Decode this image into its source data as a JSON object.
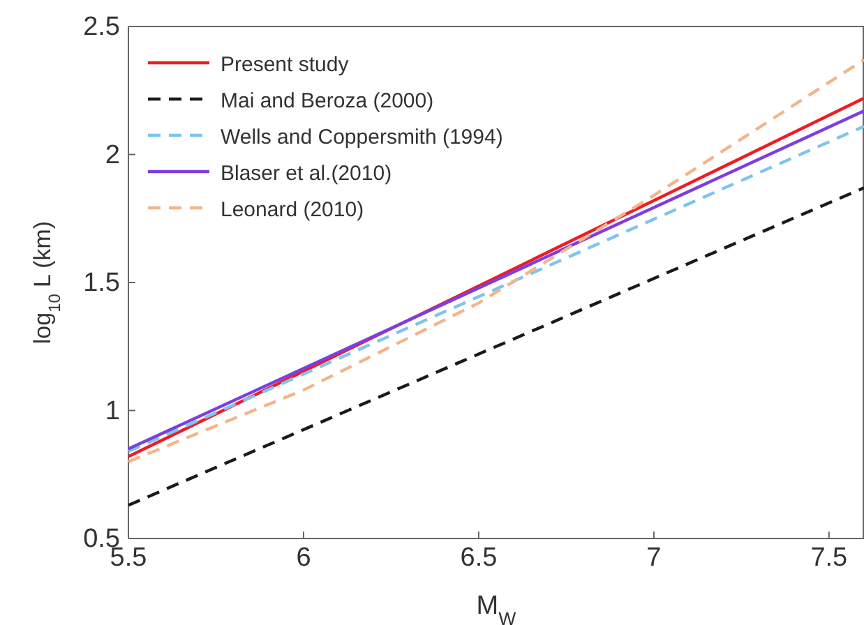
{
  "chart_data": {
    "type": "line",
    "xlabel": "M$_{W}$",
    "ylabel": "log$_{10}$ L (km)",
    "xlim": [
      5.5,
      7.6
    ],
    "xticks": [
      5.5,
      6,
      6.5,
      7,
      7.5
    ],
    "ylim": [
      0.5,
      2.5
    ],
    "yticks": [
      0.5,
      1,
      1.5,
      2,
      2.5
    ],
    "grid": false,
    "legend": "top left",
    "marker": "none",
    "series": [
      {
        "name": "Present study",
        "color": "#ee1c25",
        "line_style": "solid",
        "x": [
          5.5,
          7.6
        ],
        "values": [
          0.82,
          2.22
        ]
      },
      {
        "name": "Mai and Beroza (2000)",
        "color": "#1a1a1a",
        "line_style": "dashed",
        "x": [
          5.5,
          7.6
        ],
        "values": [
          0.63,
          1.87
        ]
      },
      {
        "name": "Wells and Coppersmith (1994)",
        "color": "#7fc4ec",
        "line_style": "dashed",
        "x": [
          5.5,
          7.6
        ],
        "values": [
          0.84,
          2.11
        ]
      },
      {
        "name": "Blaser et al.(2010)",
        "color": "#7b3fe0",
        "line_style": "solid",
        "x": [
          5.5,
          7.6
        ],
        "values": [
          0.85,
          2.17
        ]
      },
      {
        "name": "Leonard (2010)",
        "color": "#f4b48a",
        "line_style": "dashed",
        "x": [
          5.5,
          6,
          6.5,
          7,
          7.6
        ],
        "values": [
          0.8,
          1.08,
          1.42,
          1.84,
          2.37
        ]
      }
    ]
  }
}
